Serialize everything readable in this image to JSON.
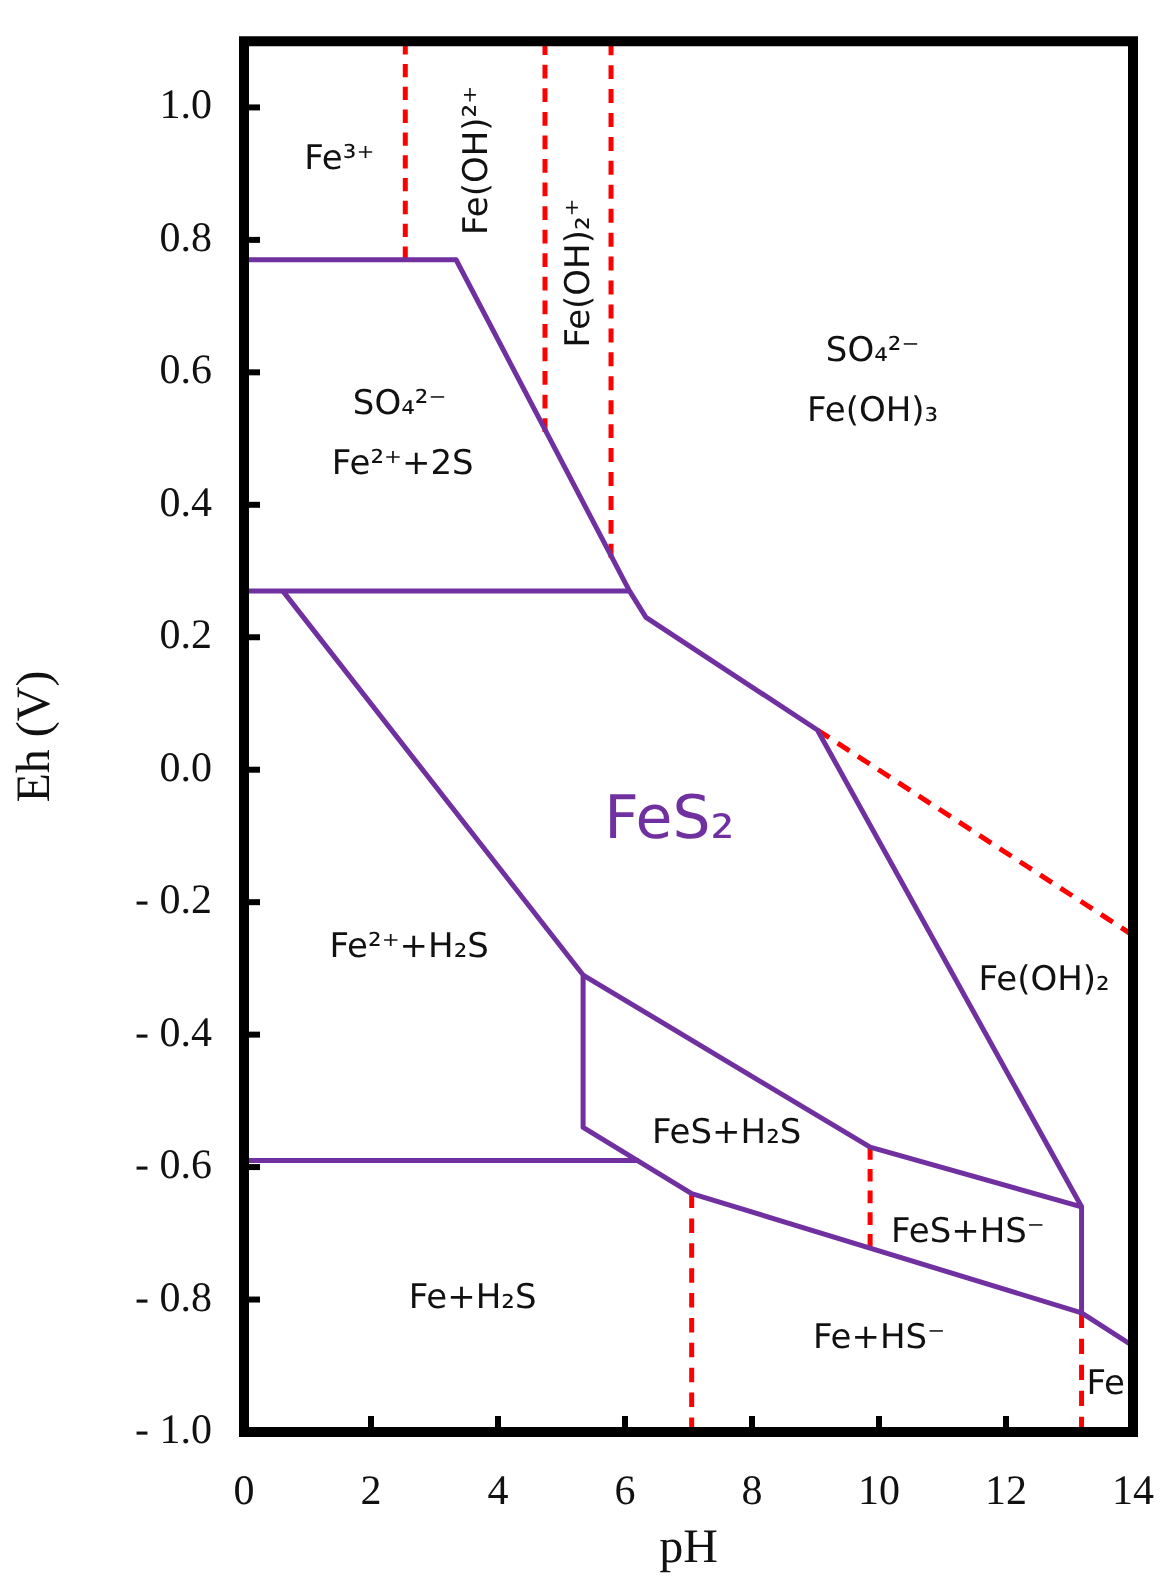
{
  "chart_data": {
    "type": "line",
    "xlabel": "pH",
    "ylabel": "Eh (V)",
    "xlim": [
      0,
      14
    ],
    "xticks": [
      0,
      2,
      4,
      6,
      8,
      10,
      12,
      14
    ],
    "ylim": [
      -1,
      1.1
    ],
    "yticks": [
      {
        "value": 1,
        "label": "1.0"
      },
      {
        "value": 0.8,
        "label": "0.8"
      },
      {
        "value": 0.6,
        "label": "0.6"
      },
      {
        "value": 0.4,
        "label": "0.4"
      },
      {
        "value": 0.2,
        "label": "0.2"
      },
      {
        "value": 0,
        "label": "0.0"
      },
      {
        "value": -0.2,
        "label": "- 0.2"
      },
      {
        "value": -0.4,
        "label": "- 0.4"
      },
      {
        "value": -0.6,
        "label": "- 0.6"
      },
      {
        "value": -0.8,
        "label": "- 0.8"
      },
      {
        "value": -1,
        "label": "- 1.0"
      }
    ],
    "marker": "none",
    "series": [
      {
        "color": "#7030a0",
        "line_style": "solid",
        "x": [
          0,
          3.34,
          6.07,
          6.33,
          9.03,
          13.19
        ],
        "values": [
          0.77,
          0.77,
          0.27,
          0.23,
          0.06,
          -0.66
        ]
      },
      {
        "color": "#7030a0",
        "line_style": "solid",
        "x": [
          0,
          6.07
        ],
        "values": [
          0.27,
          0.27
        ]
      },
      {
        "color": "#7030a0",
        "line_style": "solid",
        "x": [
          0.61,
          5.34,
          5.34,
          7.05,
          13.19,
          14
        ],
        "values": [
          0.27,
          -0.31,
          -0.54,
          -0.64,
          -0.82,
          -0.87
        ]
      },
      {
        "color": "#7030a0",
        "line_style": "solid",
        "x": [
          5.34,
          9.86,
          13.19,
          13.19
        ],
        "values": [
          -0.31,
          -0.57,
          -0.66,
          -0.82
        ]
      },
      {
        "color": "#7030a0",
        "line_style": "solid",
        "x": [
          0,
          6.22
        ],
        "values": [
          -0.59,
          -0.59
        ]
      },
      {
        "color": "#ff0000",
        "line_style": "dashed",
        "x": [
          2.54,
          2.54
        ],
        "values": [
          1.1,
          0.77
        ]
      },
      {
        "color": "#ff0000",
        "line_style": "dashed",
        "x": [
          4.74,
          4.74
        ],
        "values": [
          1.1,
          0.51
        ]
      },
      {
        "color": "#ff0000",
        "line_style": "dashed",
        "x": [
          5.78,
          5.78
        ],
        "values": [
          1.1,
          0.32
        ]
      },
      {
        "color": "#ff0000",
        "line_style": "dashed",
        "x": [
          9.03,
          14
        ],
        "values": [
          0.06,
          -0.25
        ]
      },
      {
        "color": "#ff0000",
        "line_style": "dashed",
        "x": [
          9.86,
          9.86
        ],
        "values": [
          -0.57,
          -0.72
        ]
      },
      {
        "color": "#ff0000",
        "line_style": "dashed",
        "x": [
          7.05,
          7.05
        ],
        "values": [
          -0.64,
          -1
        ]
      },
      {
        "color": "#ff0000",
        "line_style": "dashed",
        "x": [
          13.19,
          13.19
        ],
        "values": [
          -0.82,
          -1
        ]
      }
    ],
    "annotations": [
      "Fe³⁺",
      "Fe(OH)²⁺",
      "Fe(OH)₂⁺",
      "SO₄²⁻",
      "Fe²⁺+2S",
      "SO₄²⁻",
      "Fe(OH)₃",
      "FeS₂",
      "Fe²⁺+H₂S",
      "Fe(OH)₂",
      "FeS+H₂S",
      "FeS+HS⁻",
      "Fe+H₂S",
      "Fe+HS⁻",
      "Fe"
    ]
  }
}
